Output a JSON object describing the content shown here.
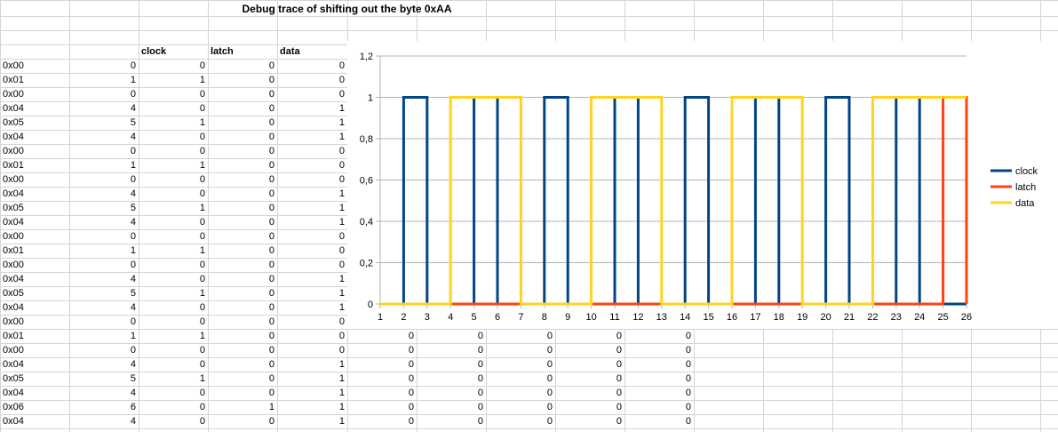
{
  "sheet": {
    "title": "Debug trace of shifting out the byte 0xAA",
    "headers": [
      "clock",
      "latch",
      "data"
    ],
    "rows": [
      [
        "0x00",
        "0",
        "0",
        "0",
        "0"
      ],
      [
        "0x01",
        "1",
        "1",
        "0",
        "0"
      ],
      [
        "0x00",
        "0",
        "0",
        "0",
        "0"
      ],
      [
        "0x04",
        "4",
        "0",
        "0",
        "1"
      ],
      [
        "0x05",
        "5",
        "1",
        "0",
        "1"
      ],
      [
        "0x04",
        "4",
        "0",
        "0",
        "1"
      ],
      [
        "0x00",
        "0",
        "0",
        "0",
        "0"
      ],
      [
        "0x01",
        "1",
        "1",
        "0",
        "0"
      ],
      [
        "0x00",
        "0",
        "0",
        "0",
        "0"
      ],
      [
        "0x04",
        "4",
        "0",
        "0",
        "1"
      ],
      [
        "0x05",
        "5",
        "1",
        "0",
        "1"
      ],
      [
        "0x04",
        "4",
        "0",
        "0",
        "1"
      ],
      [
        "0x00",
        "0",
        "0",
        "0",
        "0"
      ],
      [
        "0x01",
        "1",
        "1",
        "0",
        "0"
      ],
      [
        "0x00",
        "0",
        "0",
        "0",
        "0"
      ],
      [
        "0x04",
        "4",
        "0",
        "0",
        "1"
      ],
      [
        "0x05",
        "5",
        "1",
        "0",
        "1"
      ],
      [
        "0x04",
        "4",
        "0",
        "0",
        "1"
      ],
      [
        "0x00",
        "0",
        "0",
        "0",
        "0"
      ],
      [
        "0x01",
        "1",
        "1",
        "0",
        "0",
        "0",
        "0",
        "0",
        "0",
        "0"
      ],
      [
        "0x00",
        "0",
        "0",
        "0",
        "0",
        "0",
        "0",
        "0",
        "0",
        "0"
      ],
      [
        "0x04",
        "4",
        "0",
        "0",
        "1",
        "0",
        "0",
        "0",
        "0",
        "0"
      ],
      [
        "0x05",
        "5",
        "1",
        "0",
        "1",
        "0",
        "0",
        "0",
        "0",
        "0"
      ],
      [
        "0x04",
        "4",
        "0",
        "0",
        "1",
        "0",
        "0",
        "0",
        "0",
        "0"
      ],
      [
        "0x06",
        "6",
        "0",
        "1",
        "1",
        "0",
        "0",
        "0",
        "0",
        "0"
      ],
      [
        "0x04",
        "4",
        "0",
        "0",
        "1",
        "0",
        "0",
        "0",
        "0",
        "0"
      ]
    ]
  },
  "chart_data": {
    "type": "line",
    "step": true,
    "x": [
      1,
      2,
      3,
      4,
      5,
      6,
      7,
      8,
      9,
      10,
      11,
      12,
      13,
      14,
      15,
      16,
      17,
      18,
      19,
      20,
      21,
      22,
      23,
      24,
      25,
      26
    ],
    "xlim": [
      1,
      26
    ],
    "ylim": [
      0,
      1.2
    ],
    "yticks": [
      "0",
      "0,2",
      "0,4",
      "0,6",
      "0,8",
      "1",
      "1,2"
    ],
    "ytick_values": [
      0,
      0.2,
      0.4,
      0.6,
      0.8,
      1,
      1.2
    ],
    "grid": true,
    "legend": "right",
    "series": [
      {
        "name": "clock",
        "color": "#004586",
        "values": [
          0,
          1,
          0,
          0,
          1,
          0,
          0,
          1,
          0,
          0,
          1,
          0,
          0,
          1,
          0,
          0,
          1,
          0,
          0,
          1,
          0,
          0,
          1,
          0,
          0,
          0
        ]
      },
      {
        "name": "latch",
        "color": "#ff420e",
        "values": [
          0,
          0,
          0,
          0,
          0,
          0,
          0,
          0,
          0,
          0,
          0,
          0,
          0,
          0,
          0,
          0,
          0,
          0,
          0,
          0,
          0,
          0,
          0,
          0,
          1,
          0
        ]
      },
      {
        "name": "data",
        "color": "#ffd320",
        "values": [
          0,
          0,
          0,
          1,
          1,
          1,
          0,
          0,
          0,
          1,
          1,
          1,
          0,
          0,
          0,
          1,
          1,
          1,
          0,
          0,
          0,
          1,
          1,
          1,
          1,
          1
        ]
      }
    ]
  }
}
